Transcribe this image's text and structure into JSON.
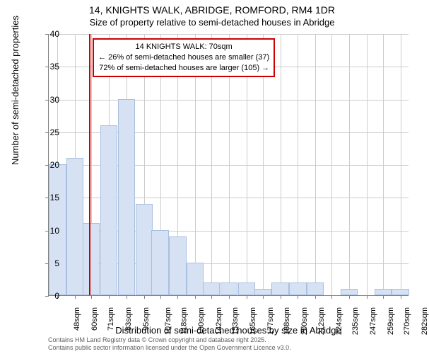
{
  "chart": {
    "type": "histogram",
    "title_line1": "14, KNIGHTS WALK, ABRIDGE, ROMFORD, RM4 1DR",
    "title_line2": "Size of property relative to semi-detached houses in Abridge",
    "y_axis_label": "Number of semi-detached properties",
    "x_axis_label": "Distribution of semi-detached houses by size in Abridge",
    "ylim": [
      0,
      40
    ],
    "ytick_step": 5,
    "yticks": [
      0,
      5,
      10,
      15,
      20,
      25,
      30,
      35,
      40
    ],
    "xticks": [
      "48sqm",
      "60sqm",
      "71sqm",
      "83sqm",
      "95sqm",
      "107sqm",
      "118sqm",
      "130sqm",
      "142sqm",
      "153sqm",
      "165sqm",
      "177sqm",
      "188sqm",
      "200sqm",
      "212sqm",
      "224sqm",
      "235sqm",
      "247sqm",
      "259sqm",
      "270sqm",
      "282sqm"
    ],
    "bars": [
      {
        "x_center": 48,
        "height": 20
      },
      {
        "x_center": 60,
        "height": 21
      },
      {
        "x_center": 71,
        "height": 11
      },
      {
        "x_center": 83,
        "height": 26
      },
      {
        "x_center": 95,
        "height": 30
      },
      {
        "x_center": 107,
        "height": 14
      },
      {
        "x_center": 118,
        "height": 10
      },
      {
        "x_center": 130,
        "height": 9
      },
      {
        "x_center": 142,
        "height": 5
      },
      {
        "x_center": 153,
        "height": 2
      },
      {
        "x_center": 165,
        "height": 2
      },
      {
        "x_center": 177,
        "height": 2
      },
      {
        "x_center": 188,
        "height": 1
      },
      {
        "x_center": 200,
        "height": 2
      },
      {
        "x_center": 212,
        "height": 2
      },
      {
        "x_center": 224,
        "height": 2
      },
      {
        "x_center": 235,
        "height": 0
      },
      {
        "x_center": 247,
        "height": 1
      },
      {
        "x_center": 259,
        "height": 0
      },
      {
        "x_center": 270,
        "height": 1
      },
      {
        "x_center": 282,
        "height": 1
      }
    ],
    "x_range": [
      42,
      288
    ],
    "bar_width_units": 11.7,
    "bar_fill": "#d6e2f3",
    "bar_stroke": "#a9bfe0",
    "background_color": "#ffffff",
    "grid_color": "#cccccc",
    "axis_color": "#808080",
    "reference_line": {
      "x": 70,
      "color": "#cc0000"
    },
    "callout": {
      "line1": "14 KNIGHTS WALK: 70sqm",
      "line2": "← 26% of semi-detached houses are smaller (37)",
      "line3": "72% of semi-detached houses are larger (105) →",
      "border_color": "#cc0000"
    },
    "footer_line1": "Contains HM Land Registry data © Crown copyright and database right 2025.",
    "footer_line2": "Contains public sector information licensed under the Open Government Licence v3.0."
  }
}
